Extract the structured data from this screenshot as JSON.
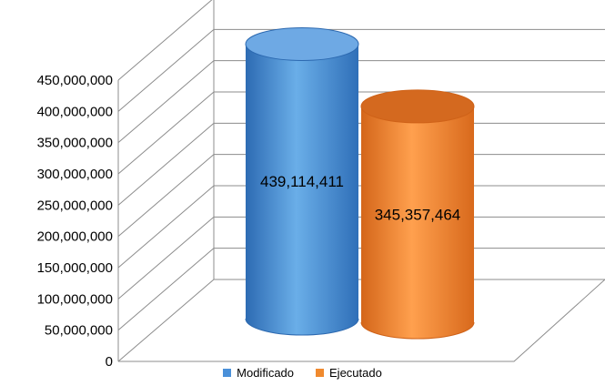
{
  "chart_data": {
    "type": "bar",
    "style": "3d-cylinder",
    "categories": [
      ""
    ],
    "series": [
      {
        "name": "Modificado",
        "values": [
          439114411
        ],
        "value_label": "439,114,411",
        "color": "#4a90d9"
      },
      {
        "name": "Ejecutado",
        "values": [
          345357464
        ],
        "value_label": "345,357,464",
        "color": "#f08a2e"
      }
    ],
    "ylim": [
      0,
      450000000
    ],
    "y_ticks": [
      0,
      50000000,
      100000000,
      150000000,
      200000000,
      250000000,
      300000000,
      350000000,
      400000000,
      450000000
    ],
    "y_tick_labels": [
      "0",
      "50,000,000",
      "100,000,000",
      "150,000,000",
      "200,000,000",
      "250,000,000",
      "300,000,000",
      "350,000,000",
      "400,000,000",
      "450,000,000"
    ],
    "grid": true,
    "legend_position": "bottom",
    "title": "",
    "xlabel": "",
    "ylabel": ""
  }
}
